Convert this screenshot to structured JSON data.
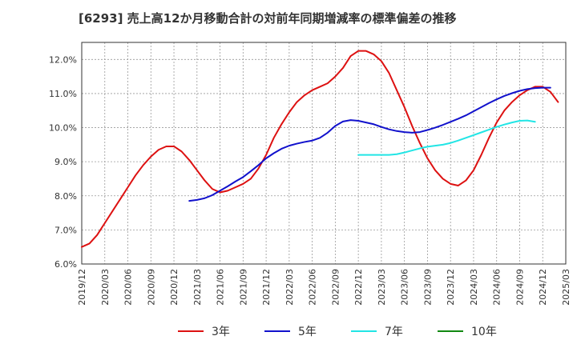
{
  "chart_data": {
    "type": "line",
    "title": "[6293]  売上高12か月移動合計の対前年同期増減率の標準偏差の推移",
    "xlabel": "",
    "ylabel": "",
    "ylim": [
      6.0,
      12.5
    ],
    "y_ticks": [
      "6.0%",
      "7.0%",
      "8.0%",
      "9.0%",
      "10.0%",
      "11.0%",
      "12.0%"
    ],
    "x_ticks": [
      "2019/12",
      "2020/03",
      "2020/06",
      "2020/09",
      "2020/12",
      "2021/03",
      "2021/06",
      "2021/09",
      "2021/12",
      "2022/03",
      "2022/06",
      "2022/09",
      "2022/12",
      "2023/03",
      "2023/06",
      "2023/09",
      "2023/12",
      "2024/03",
      "2024/06",
      "2024/09",
      "2024/12",
      "2025/03"
    ],
    "grid": true,
    "legend_position": "bottom",
    "series": [
      {
        "name": "3年",
        "color": "#dd1111",
        "start": "2019/12",
        "values": [
          6.5,
          6.6,
          6.85,
          7.2,
          7.55,
          7.9,
          8.25,
          8.6,
          8.9,
          9.15,
          9.35,
          9.45,
          9.45,
          9.3,
          9.05,
          8.75,
          8.45,
          8.2,
          8.1,
          8.15,
          8.25,
          8.35,
          8.5,
          8.8,
          9.2,
          9.7,
          10.1,
          10.45,
          10.75,
          10.95,
          11.1,
          11.2,
          11.3,
          11.5,
          11.75,
          12.1,
          12.25,
          12.25,
          12.15,
          11.95,
          11.6,
          11.1,
          10.6,
          10.05,
          9.55,
          9.1,
          8.75,
          8.5,
          8.35,
          8.3,
          8.45,
          8.75,
          9.2,
          9.7,
          10.15,
          10.5,
          10.75,
          10.95,
          11.1,
          11.2,
          11.2,
          11.05,
          10.75
        ]
      },
      {
        "name": "5年",
        "color": "#1111cc",
        "start": "2021/02",
        "values": [
          7.85,
          7.88,
          7.93,
          8.02,
          8.15,
          8.28,
          8.42,
          8.55,
          8.72,
          8.9,
          9.1,
          9.25,
          9.38,
          9.47,
          9.53,
          9.58,
          9.62,
          9.7,
          9.85,
          10.05,
          10.18,
          10.22,
          10.2,
          10.15,
          10.1,
          10.02,
          9.95,
          9.9,
          9.87,
          9.85,
          9.87,
          9.93,
          10.0,
          10.08,
          10.17,
          10.26,
          10.36,
          10.48,
          10.6,
          10.72,
          10.83,
          10.93,
          11.01,
          11.08,
          11.13,
          11.16,
          11.17,
          11.17
        ]
      },
      {
        "name": "7年",
        "color": "#22e5e5",
        "start": "2022/12",
        "values": [
          9.2,
          9.2,
          9.2,
          9.2,
          9.2,
          9.22,
          9.27,
          9.33,
          9.39,
          9.44,
          9.47,
          9.5,
          9.55,
          9.62,
          9.7,
          9.78,
          9.86,
          9.94,
          10.02,
          10.09,
          10.15,
          10.2,
          10.21,
          10.17
        ]
      },
      {
        "name": "10年",
        "color": "#118811",
        "start": "",
        "values": []
      }
    ]
  }
}
